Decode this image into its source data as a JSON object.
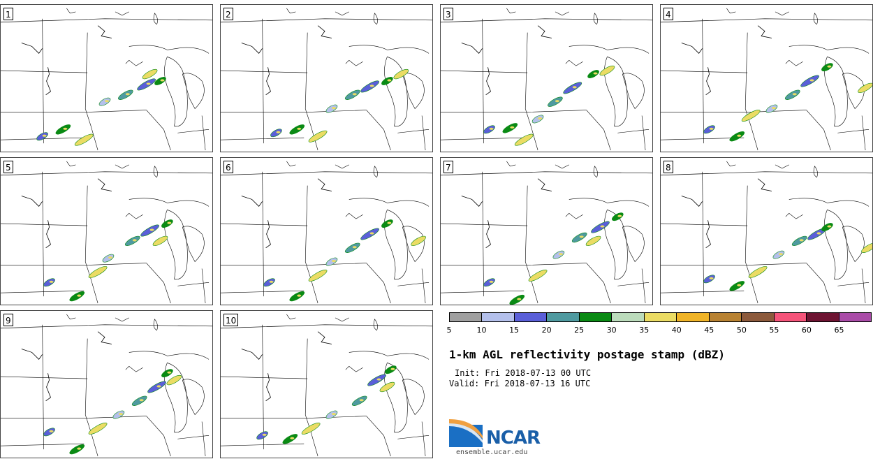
{
  "panels": [
    {
      "label": "1"
    },
    {
      "label": "2"
    },
    {
      "label": "3"
    },
    {
      "label": "4"
    },
    {
      "label": "5"
    },
    {
      "label": "6"
    },
    {
      "label": "7"
    },
    {
      "label": "8"
    },
    {
      "label": "9"
    },
    {
      "label": "10"
    }
  ],
  "colorbar": {
    "colors": [
      "#a0a0a0",
      "#b4c0eb",
      "#5a5fd8",
      "#4f9aa0",
      "#0a8a14",
      "#bcdcbc",
      "#ebdc64",
      "#f0b428",
      "#b88232",
      "#8c5a3c",
      "#f5547a",
      "#6e1432",
      "#aa4ca8"
    ],
    "tick_labels": [
      "5",
      "10",
      "15",
      "20",
      "25",
      "30",
      "35",
      "40",
      "45",
      "50",
      "55",
      "60",
      "65"
    ]
  },
  "title": "1-km AGL reflectivity postage stamp (dBZ)",
  "init": "Init: Fri 2018-07-13 00 UTC",
  "valid": "Valid: Fri 2018-07-13 16 UTC",
  "logo_text": "NCAR",
  "url": "ensemble.ucar.edu"
}
